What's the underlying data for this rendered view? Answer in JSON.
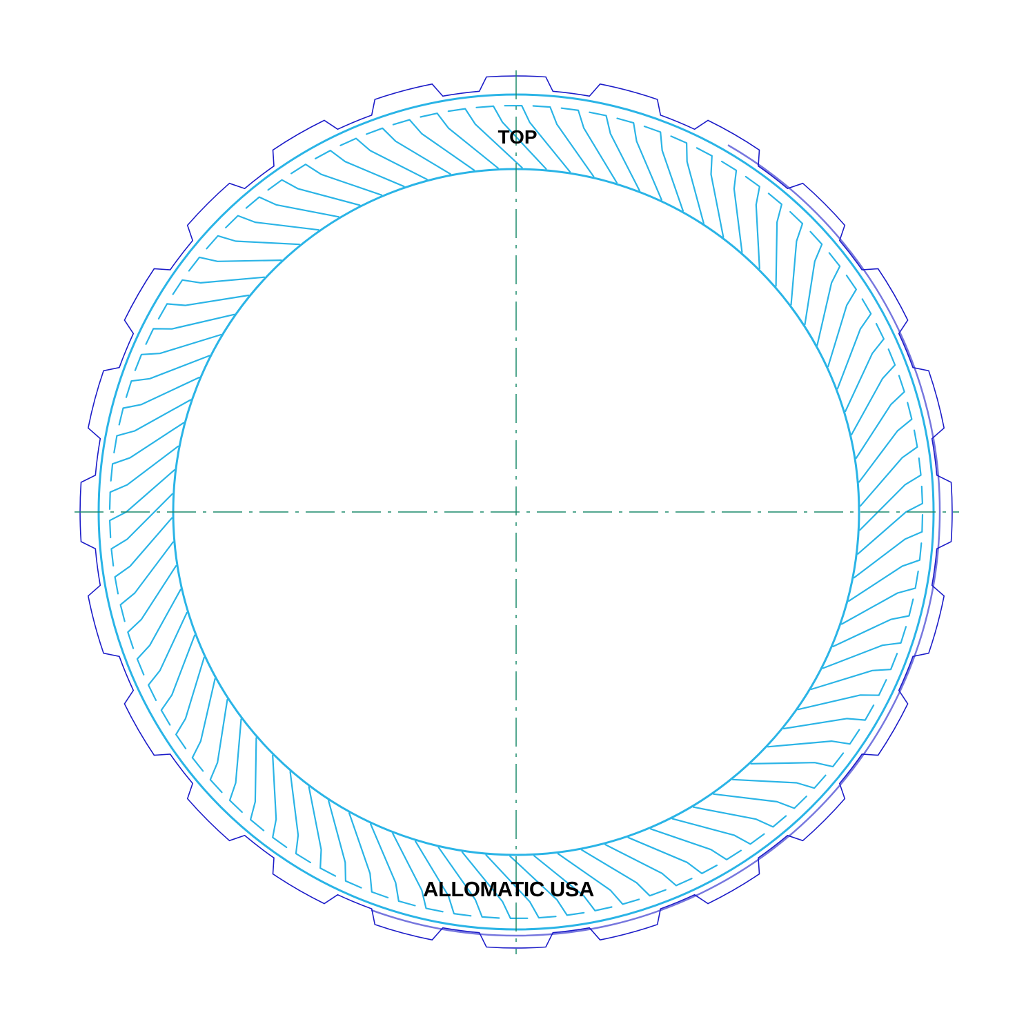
{
  "labels": {
    "top": "TOP",
    "maker": "ALLOMATIC USA"
  },
  "colors": {
    "background": "#ffffff",
    "outer_profile": "#1c1cc8",
    "friction_material": "#2ab4e6",
    "centerline": "#1a8a6a",
    "text": "#000000"
  },
  "drawing": {
    "external_tab_count": 24,
    "groove_count": 90,
    "icons": [
      "friction-plate-outline",
      "centerline-cross"
    ]
  }
}
